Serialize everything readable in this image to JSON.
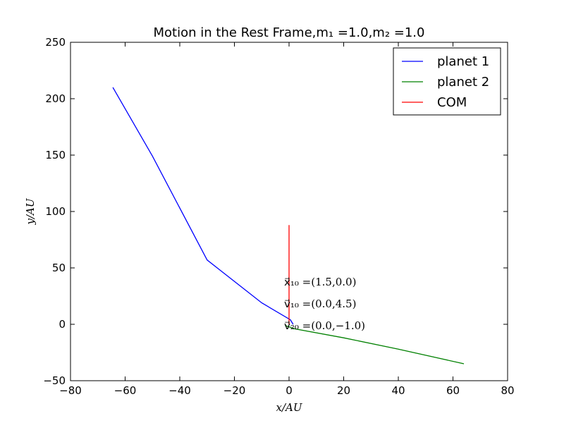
{
  "chart_data": {
    "type": "line",
    "title": "Motion in the Rest Frame,m₁ =1.0,m₂ =1.0",
    "xlabel": "x/AU",
    "ylabel": "y/AU",
    "xlim": [
      -80,
      80
    ],
    "ylim": [
      -50,
      250
    ],
    "xticks": [
      -80,
      -60,
      -40,
      -20,
      0,
      20,
      40,
      60,
      80
    ],
    "yticks": [
      -50,
      0,
      50,
      100,
      150,
      200,
      250
    ],
    "xtick_labels": [
      "−80",
      "−60",
      "−40",
      "−20",
      "0",
      "20",
      "40",
      "60",
      "80"
    ],
    "ytick_labels": [
      "−50",
      "0",
      "50",
      "100",
      "150",
      "200",
      "250"
    ],
    "grid": false,
    "legend_position": "top-right",
    "series": [
      {
        "name": "planet 1",
        "color": "#0000ff",
        "x": [
          1.5,
          0.5,
          -10,
          -30,
          -50,
          -64.5
        ],
        "y": [
          0,
          4,
          19,
          57,
          149,
          210
        ]
      },
      {
        "name": "planet 2",
        "color": "#008000",
        "x": [
          -1.5,
          2,
          20,
          40,
          64
        ],
        "y": [
          -1,
          -4,
          -12,
          -22,
          -35
        ]
      },
      {
        "name": "COM",
        "color": "#ff0000",
        "x": [
          0,
          0
        ],
        "y": [
          0,
          88
        ]
      }
    ],
    "annotations": [
      "x⃗₁₀ =(1.5,0.0)",
      "v⃗₁₀ =(0.0,4.5)",
      "v⃗₂₀ =(0.0,−1.0)"
    ]
  }
}
